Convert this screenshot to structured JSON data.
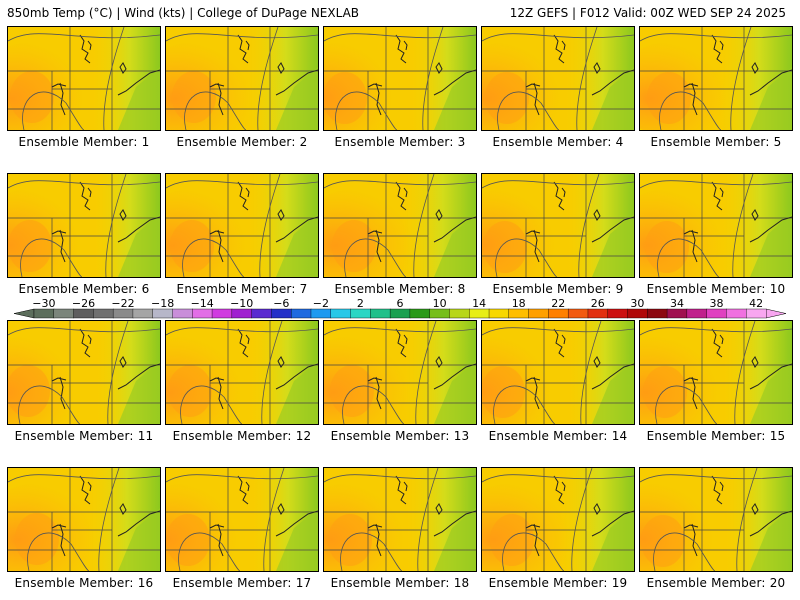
{
  "header": {
    "left": "850mb Temp (°C) | Wind (kts) | College of DuPage NEXLAB",
    "right": "12Z GEFS | F012 Valid: 00Z WED SEP 24 2025"
  },
  "panels": [
    {
      "label": "Ensemble Member: 1"
    },
    {
      "label": "Ensemble Member: 2"
    },
    {
      "label": "Ensemble Member: 3"
    },
    {
      "label": "Ensemble Member: 4"
    },
    {
      "label": "Ensemble Member: 5"
    },
    {
      "label": "Ensemble Member: 6"
    },
    {
      "label": "Ensemble Member: 7"
    },
    {
      "label": "Ensemble Member: 8"
    },
    {
      "label": "Ensemble Member: 9"
    },
    {
      "label": "Ensemble Member: 10"
    },
    {
      "label": "Ensemble Member: 11"
    },
    {
      "label": "Ensemble Member: 12"
    },
    {
      "label": "Ensemble Member: 13"
    },
    {
      "label": "Ensemble Member: 14"
    },
    {
      "label": "Ensemble Member: 15"
    },
    {
      "label": "Ensemble Member: 16"
    },
    {
      "label": "Ensemble Member: 17"
    },
    {
      "label": "Ensemble Member: 18"
    },
    {
      "label": "Ensemble Member: 19"
    },
    {
      "label": "Ensemble Member: 20"
    }
  ],
  "colorbar": {
    "tick_labels": [
      "-30",
      "-26",
      "-22",
      "-18",
      "-14",
      "-10",
      "-6",
      "-2",
      "2",
      "6",
      "10",
      "14",
      "18",
      "22",
      "26",
      "30",
      "34",
      "38",
      "42"
    ],
    "colors": [
      "#5c6e5c",
      "#7b857b",
      "#5e5e5e",
      "#707070",
      "#8a8a8a",
      "#a5a5a5",
      "#b7b7c9",
      "#c98ed9",
      "#e26ee6",
      "#d03be0",
      "#a020d0",
      "#5a2ad0",
      "#2430c8",
      "#1f6ae0",
      "#1e9af0",
      "#27c8e8",
      "#2ad6c4",
      "#20c08a",
      "#1aa050",
      "#2a9a1a",
      "#76be1a",
      "#b8d61a",
      "#e8ee16",
      "#f8d800",
      "#ffbe00",
      "#ffa000",
      "#ff8000",
      "#f25a10",
      "#e23010",
      "#cc1010",
      "#b00808",
      "#8c0810",
      "#a01050",
      "#c0208c",
      "#e040c0",
      "#f070e0",
      "#f8a6f0"
    ]
  }
}
